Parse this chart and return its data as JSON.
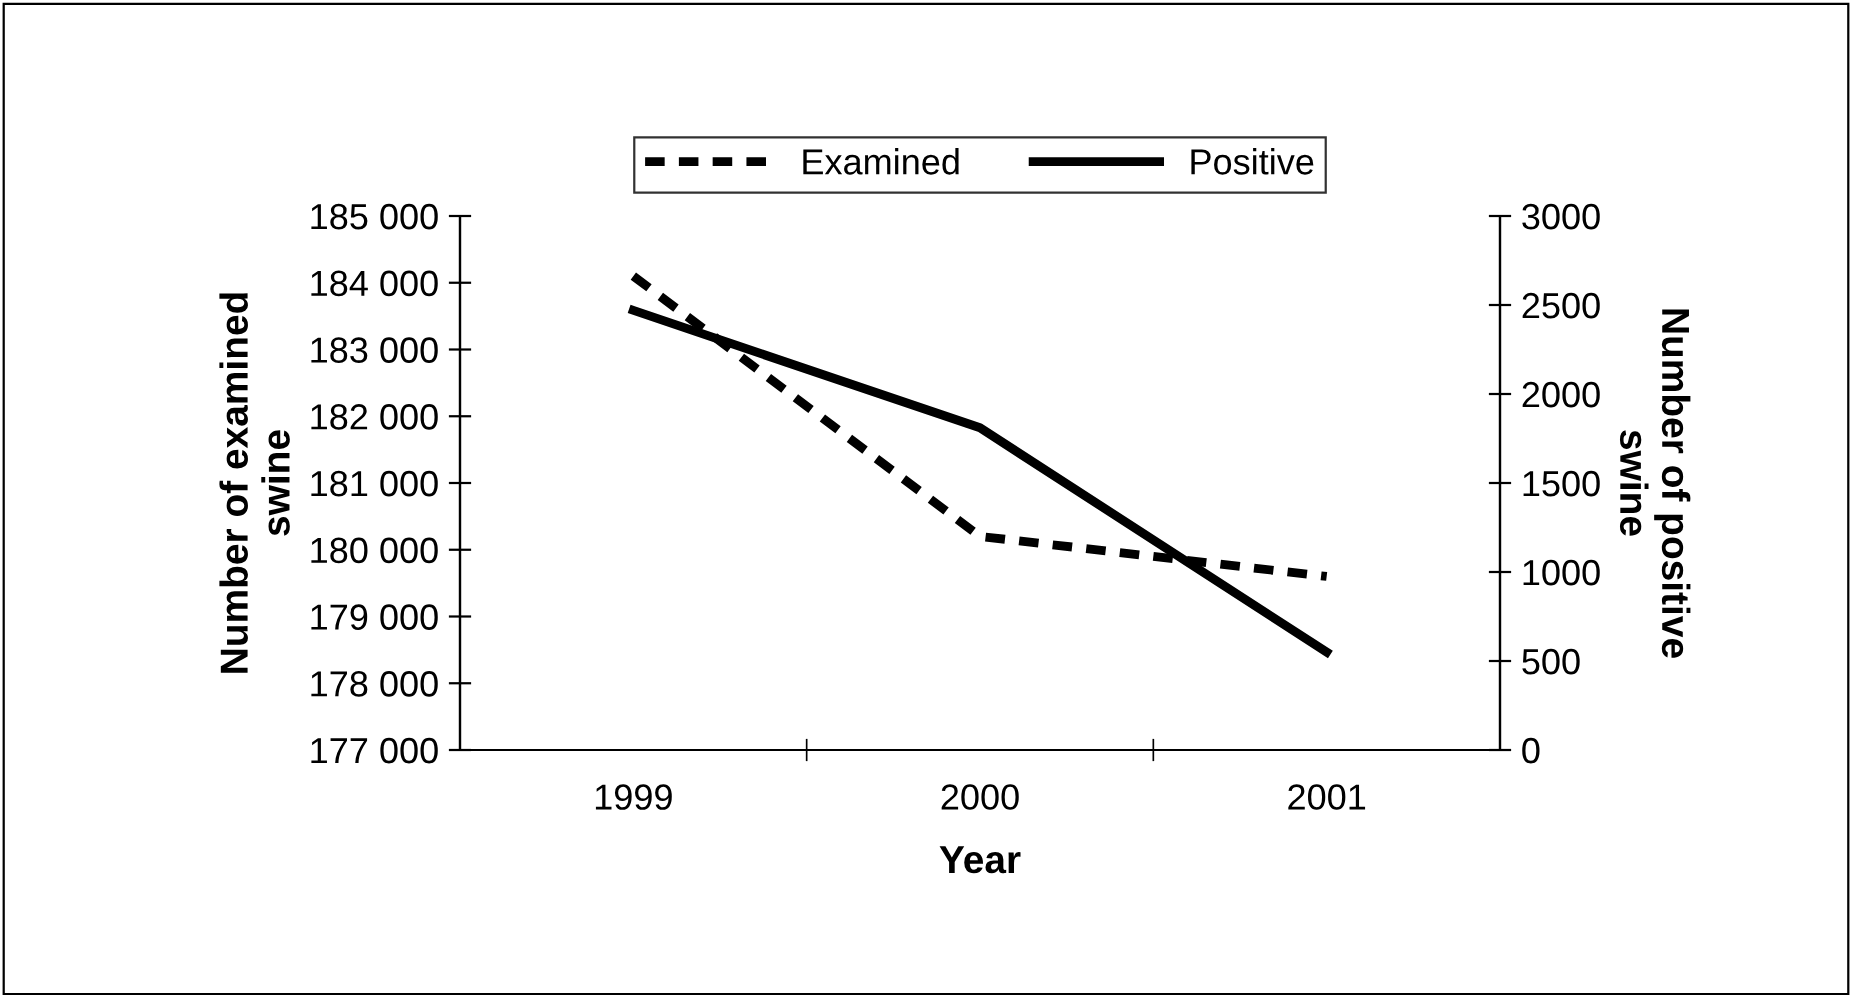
{
  "chart_data": {
    "type": "line",
    "xlabel": "Year",
    "ylabel": "Number of examined\nswine",
    "y2label": "Number of positive\nswine",
    "categories": [
      "1999",
      "2000",
      "2001"
    ],
    "series": [
      {
        "name": "Examined",
        "color": "#000000",
        "line_style": "dashed",
        "values": [
          184100,
          180200,
          179600
        ]
      },
      {
        "name": "Positive",
        "color": "#000000",
        "line_style": "solid",
        "axis": "y2",
        "values": [
          2470,
          1810,
          550
        ]
      }
    ],
    "ylim": [
      177000,
      185000
    ],
    "yticks": [
      {
        "value": 177000,
        "label": "177 000"
      },
      {
        "value": 178000,
        "label": "178 000"
      },
      {
        "value": 179000,
        "label": "179 000"
      },
      {
        "value": 180000,
        "label": "180 000"
      },
      {
        "value": 181000,
        "label": "181 000"
      },
      {
        "value": 182000,
        "label": "182 000"
      },
      {
        "value": 183000,
        "label": "183 000"
      },
      {
        "value": 184000,
        "label": "184 000"
      },
      {
        "value": 185000,
        "label": "185 000"
      }
    ],
    "y2lim": [
      0,
      3000
    ],
    "y2ticks": [
      0,
      500,
      1000,
      1500,
      2000,
      2500,
      3000
    ],
    "grid": false,
    "legend": "top",
    "marker": "none"
  }
}
